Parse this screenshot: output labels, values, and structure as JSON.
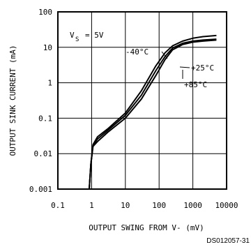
{
  "chart_data": {
    "type": "line",
    "xlabel": "OUTPUT SWING FROM V- (mV)",
    "ylabel": "OUTPUT SINK CURRENT (mA)",
    "x_scale": "log",
    "y_scale": "log",
    "xlim": [
      0.1,
      10000
    ],
    "ylim": [
      0.001,
      100
    ],
    "x_ticks": [
      "0.1",
      "1",
      "10",
      "100",
      "1000",
      "10000"
    ],
    "y_ticks": [
      "100",
      "10",
      "1",
      "0.1",
      "0.01",
      "0.001"
    ],
    "grid": true,
    "condition_label": "V",
    "condition_subscript": "S",
    "condition_value": "= 5V",
    "figure_id": "DS012057-31",
    "series": [
      {
        "name": "-40°C",
        "x": [
          0.85,
          0.95,
          1.1,
          1.5,
          3,
          10,
          30,
          80,
          150,
          250,
          500,
          1000,
          2000,
          5000
        ],
        "y": [
          0.001,
          0.005,
          0.018,
          0.03,
          0.05,
          0.14,
          0.6,
          3.0,
          7.0,
          11,
          15,
          18,
          20,
          21.5
        ]
      },
      {
        "name": "+25°C",
        "x": [
          0.85,
          0.95,
          1.1,
          1.5,
          3,
          10,
          30,
          80,
          150,
          250,
          500,
          1000,
          2000,
          5000
        ],
        "y": [
          0.001,
          0.005,
          0.017,
          0.026,
          0.045,
          0.12,
          0.45,
          2.2,
          5.5,
          9.5,
          13,
          15,
          16,
          17
        ]
      },
      {
        "name": "+85°C",
        "x": [
          0.85,
          0.95,
          1.1,
          1.5,
          3,
          10,
          30,
          80,
          150,
          250,
          500,
          1000,
          2000,
          5000
        ],
        "y": [
          0.001,
          0.005,
          0.016,
          0.022,
          0.04,
          0.1,
          0.35,
          1.6,
          4.5,
          8.5,
          12,
          14,
          15,
          16
        ]
      }
    ]
  }
}
